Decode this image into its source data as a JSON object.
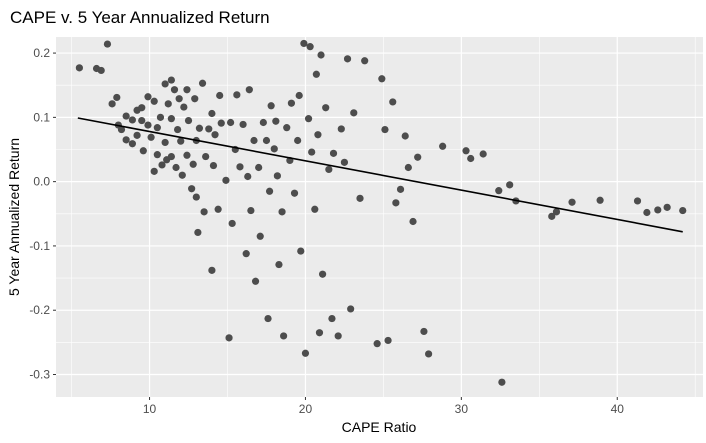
{
  "chart_data": {
    "type": "scatter",
    "title": "CAPE v. 5 Year Annualized Return",
    "xlabel": "CAPE Ratio",
    "ylabel": "5 Year Annualized Return",
    "xlim": [
      4,
      45.5
    ],
    "ylim": [
      -0.335,
      0.225
    ],
    "x_ticks": [
      10,
      20,
      30,
      40
    ],
    "y_ticks": [
      0.2,
      0.1,
      0.0,
      -0.1,
      -0.2,
      -0.3
    ],
    "x_tick_labels": [
      "10",
      "20",
      "30",
      "40"
    ],
    "y_tick_labels": [
      "0.2",
      "0.1",
      "0.0",
      "-0.1",
      "-0.2",
      "-0.3"
    ],
    "grid": true,
    "panel_background": "#ebebeb",
    "grid_color": "#ffffff",
    "point_color": "#4d4d4d",
    "line_color": "#000000",
    "trend_line": {
      "x": [
        5.4,
        44.2
      ],
      "y": [
        0.099,
        -0.078
      ]
    },
    "points": [
      [
        5.5,
        0.177
      ],
      [
        6.6,
        0.176
      ],
      [
        6.9,
        0.173
      ],
      [
        7.3,
        0.214
      ],
      [
        7.6,
        0.121
      ],
      [
        7.9,
        0.131
      ],
      [
        8.0,
        0.088
      ],
      [
        8.2,
        0.081
      ],
      [
        8.5,
        0.102
      ],
      [
        8.5,
        0.065
      ],
      [
        8.9,
        0.059
      ],
      [
        8.9,
        0.096
      ],
      [
        9.2,
        0.111
      ],
      [
        9.2,
        0.072
      ],
      [
        9.5,
        0.095
      ],
      [
        9.5,
        0.115
      ],
      [
        9.6,
        0.048
      ],
      [
        9.9,
        0.132
      ],
      [
        9.9,
        0.088
      ],
      [
        10.1,
        0.069
      ],
      [
        10.3,
        0.125
      ],
      [
        10.3,
        0.016
      ],
      [
        10.5,
        0.084
      ],
      [
        10.5,
        0.042
      ],
      [
        10.7,
        0.1
      ],
      [
        10.8,
        0.026
      ],
      [
        11.0,
        0.152
      ],
      [
        11.0,
        0.061
      ],
      [
        11.1,
        0.034
      ],
      [
        11.2,
        0.121
      ],
      [
        11.4,
        0.158
      ],
      [
        11.4,
        0.098
      ],
      [
        11.4,
        0.039
      ],
      [
        11.6,
        0.143
      ],
      [
        11.7,
        0.022
      ],
      [
        11.8,
        0.081
      ],
      [
        11.9,
        0.129
      ],
      [
        12.0,
        0.063
      ],
      [
        12.1,
        0.01
      ],
      [
        12.2,
        0.116
      ],
      [
        12.4,
        0.041
      ],
      [
        12.4,
        0.143
      ],
      [
        12.5,
        0.095
      ],
      [
        12.7,
        -0.011
      ],
      [
        12.8,
        0.027
      ],
      [
        12.9,
        0.129
      ],
      [
        13.0,
        -0.024
      ],
      [
        13.0,
        0.064
      ],
      [
        13.1,
        -0.079
      ],
      [
        13.2,
        0.083
      ],
      [
        13.4,
        0.153
      ],
      [
        13.5,
        -0.047
      ],
      [
        13.6,
        0.039
      ],
      [
        13.8,
        0.082
      ],
      [
        14.0,
        0.106
      ],
      [
        14.0,
        -0.138
      ],
      [
        14.1,
        0.025
      ],
      [
        14.2,
        0.073
      ],
      [
        14.4,
        -0.043
      ],
      [
        14.5,
        0.134
      ],
      [
        14.6,
        0.091
      ],
      [
        14.9,
        0.002
      ],
      [
        15.1,
        -0.243
      ],
      [
        15.2,
        0.092
      ],
      [
        15.3,
        -0.065
      ],
      [
        15.5,
        0.05
      ],
      [
        15.6,
        0.135
      ],
      [
        15.8,
        0.023
      ],
      [
        16.0,
        0.089
      ],
      [
        16.2,
        -0.112
      ],
      [
        16.3,
        0.008
      ],
      [
        16.4,
        0.143
      ],
      [
        16.5,
        -0.045
      ],
      [
        16.7,
        0.064
      ],
      [
        16.8,
        -0.155
      ],
      [
        17.0,
        0.022
      ],
      [
        17.1,
        -0.085
      ],
      [
        17.3,
        0.092
      ],
      [
        17.5,
        0.064
      ],
      [
        17.6,
        -0.213
      ],
      [
        17.7,
        -0.015
      ],
      [
        17.8,
        0.118
      ],
      [
        18.0,
        0.051
      ],
      [
        18.1,
        0.094
      ],
      [
        18.2,
        0.009
      ],
      [
        18.3,
        -0.129
      ],
      [
        18.5,
        -0.047
      ],
      [
        18.6,
        -0.24
      ],
      [
        18.8,
        0.084
      ],
      [
        19.0,
        0.033
      ],
      [
        19.1,
        0.122
      ],
      [
        19.3,
        -0.018
      ],
      [
        19.5,
        0.064
      ],
      [
        19.6,
        0.134
      ],
      [
        19.7,
        -0.108
      ],
      [
        19.9,
        0.215
      ],
      [
        20.0,
        -0.267
      ],
      [
        20.2,
        0.098
      ],
      [
        20.3,
        0.21
      ],
      [
        20.4,
        0.046
      ],
      [
        20.6,
        -0.043
      ],
      [
        20.7,
        0.167
      ],
      [
        20.8,
        0.073
      ],
      [
        20.9,
        -0.235
      ],
      [
        21.0,
        0.197
      ],
      [
        21.1,
        -0.144
      ],
      [
        21.3,
        0.115
      ],
      [
        21.5,
        0.019
      ],
      [
        21.7,
        -0.213
      ],
      [
        21.8,
        0.044
      ],
      [
        22.1,
        -0.24
      ],
      [
        22.3,
        0.082
      ],
      [
        22.5,
        0.03
      ],
      [
        22.7,
        0.191
      ],
      [
        22.9,
        -0.198
      ],
      [
        23.1,
        0.107
      ],
      [
        23.5,
        -0.026
      ],
      [
        23.8,
        0.188
      ],
      [
        24.6,
        -0.252
      ],
      [
        24.9,
        0.16
      ],
      [
        25.1,
        0.081
      ],
      [
        25.3,
        -0.247
      ],
      [
        25.6,
        0.124
      ],
      [
        25.8,
        -0.033
      ],
      [
        26.1,
        -0.012
      ],
      [
        26.4,
        0.071
      ],
      [
        26.6,
        0.022
      ],
      [
        26.9,
        -0.062
      ],
      [
        27.2,
        0.038
      ],
      [
        27.6,
        -0.233
      ],
      [
        27.9,
        -0.268
      ],
      [
        28.8,
        0.055
      ],
      [
        30.3,
        0.048
      ],
      [
        30.6,
        0.036
      ],
      [
        31.4,
        0.043
      ],
      [
        32.6,
        -0.312
      ],
      [
        32.4,
        -0.014
      ],
      [
        33.1,
        -0.005
      ],
      [
        33.5,
        -0.03
      ],
      [
        35.8,
        -0.054
      ],
      [
        36.1,
        -0.047
      ],
      [
        37.1,
        -0.032
      ],
      [
        38.9,
        -0.029
      ],
      [
        41.3,
        -0.03
      ],
      [
        41.9,
        -0.048
      ],
      [
        42.6,
        -0.044
      ],
      [
        43.2,
        -0.04
      ],
      [
        44.2,
        -0.045
      ]
    ]
  }
}
